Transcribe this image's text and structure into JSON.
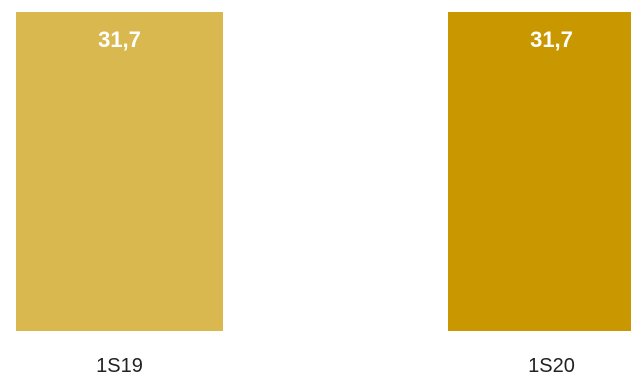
{
  "chart_data": {
    "type": "bar",
    "categories": [
      "1S19",
      "1S20"
    ],
    "values": [
      31.7,
      31.7
    ],
    "data_labels": [
      "31,7",
      "31,7"
    ],
    "colors": [
      "#D9B84F",
      "#C99800"
    ],
    "ylim": [
      0,
      31.7
    ],
    "grid": false,
    "legend": "none"
  }
}
